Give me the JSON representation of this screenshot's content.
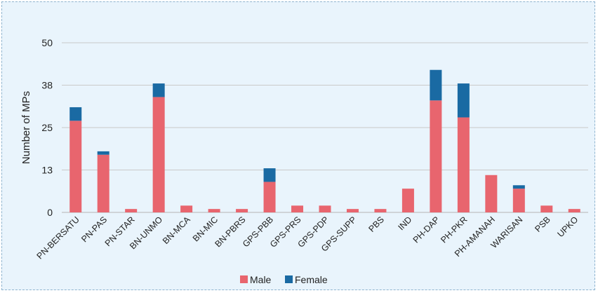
{
  "chart_data": {
    "type": "bar",
    "stacked": true,
    "categories": [
      "PN-BERSATU",
      "PN-PAS",
      "PN-STAR",
      "BN-UNMO",
      "BN-MCA",
      "BN-MIC",
      "BN-PBRS",
      "GPS-PBB",
      "GPS-PRS",
      "GPS-PDP",
      "GPS-SUPP",
      "PBS",
      "IND",
      "PH-DAP",
      "PH-PKR",
      "PH-AMANAH",
      "WARISAN",
      "PSB",
      "UPKO"
    ],
    "series": [
      {
        "name": "Male",
        "color": "#e8656e",
        "values": [
          27,
          17,
          1,
          34,
          2,
          1,
          1,
          9,
          2,
          2,
          1,
          1,
          7,
          33,
          28,
          11,
          7,
          2,
          1
        ]
      },
      {
        "name": "Female",
        "color": "#1a6aa3",
        "values": [
          4,
          1,
          0,
          4,
          0,
          0,
          0,
          4,
          0,
          0,
          0,
          0,
          0,
          9,
          10,
          0,
          1,
          0,
          0
        ]
      }
    ],
    "ylabel": "Number of MPs",
    "xlabel": "",
    "title": "",
    "ylim": [
      0,
      50
    ],
    "yticks": [
      "0",
      "13",
      "25",
      "38",
      "50"
    ],
    "ytick_values": [
      0,
      12.5,
      25,
      37.5,
      50
    ],
    "grid": true,
    "legend_position": "bottom-center"
  }
}
